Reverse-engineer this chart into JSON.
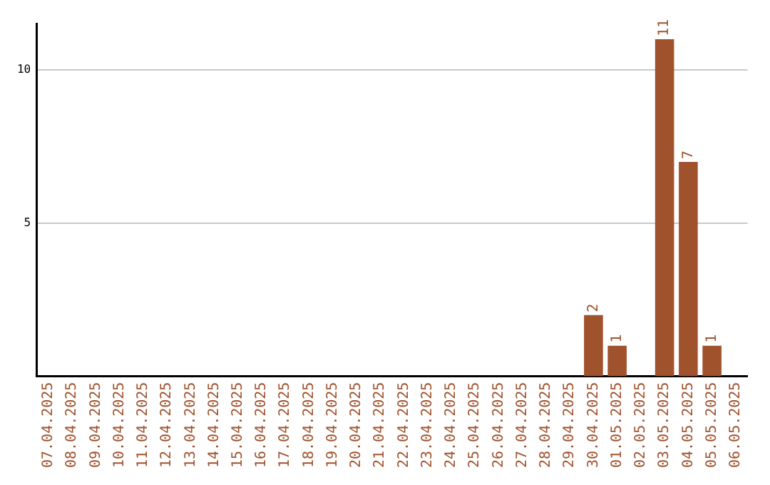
{
  "chart_data": {
    "type": "bar",
    "categories": [
      "07.04.2025",
      "08.04.2025",
      "09.04.2025",
      "10.04.2025",
      "11.04.2025",
      "12.04.2025",
      "13.04.2025",
      "14.04.2025",
      "15.04.2025",
      "16.04.2025",
      "17.04.2025",
      "18.04.2025",
      "19.04.2025",
      "20.04.2025",
      "21.04.2025",
      "22.04.2025",
      "23.04.2025",
      "24.04.2025",
      "25.04.2025",
      "26.04.2025",
      "27.04.2025",
      "28.04.2025",
      "29.04.2025",
      "30.04.2025",
      "01.05.2025",
      "02.05.2025",
      "03.05.2025",
      "04.05.2025",
      "05.05.2025",
      "06.05.2025"
    ],
    "values": [
      0,
      0,
      0,
      0,
      0,
      0,
      0,
      0,
      0,
      0,
      0,
      0,
      0,
      0,
      0,
      0,
      0,
      0,
      0,
      0,
      0,
      0,
      0,
      2,
      1,
      0,
      11,
      7,
      1,
      0
    ],
    "value_labels": [
      null,
      null,
      null,
      null,
      null,
      null,
      null,
      null,
      null,
      null,
      null,
      null,
      null,
      null,
      null,
      null,
      null,
      null,
      null,
      null,
      null,
      null,
      null,
      "2",
      "1",
      null,
      "11",
      "7",
      "1",
      null
    ],
    "color": "#a0522d",
    "ylim": [
      0,
      11.5
    ],
    "yticks": [
      5,
      10
    ],
    "grid": "y",
    "legend": false
  }
}
